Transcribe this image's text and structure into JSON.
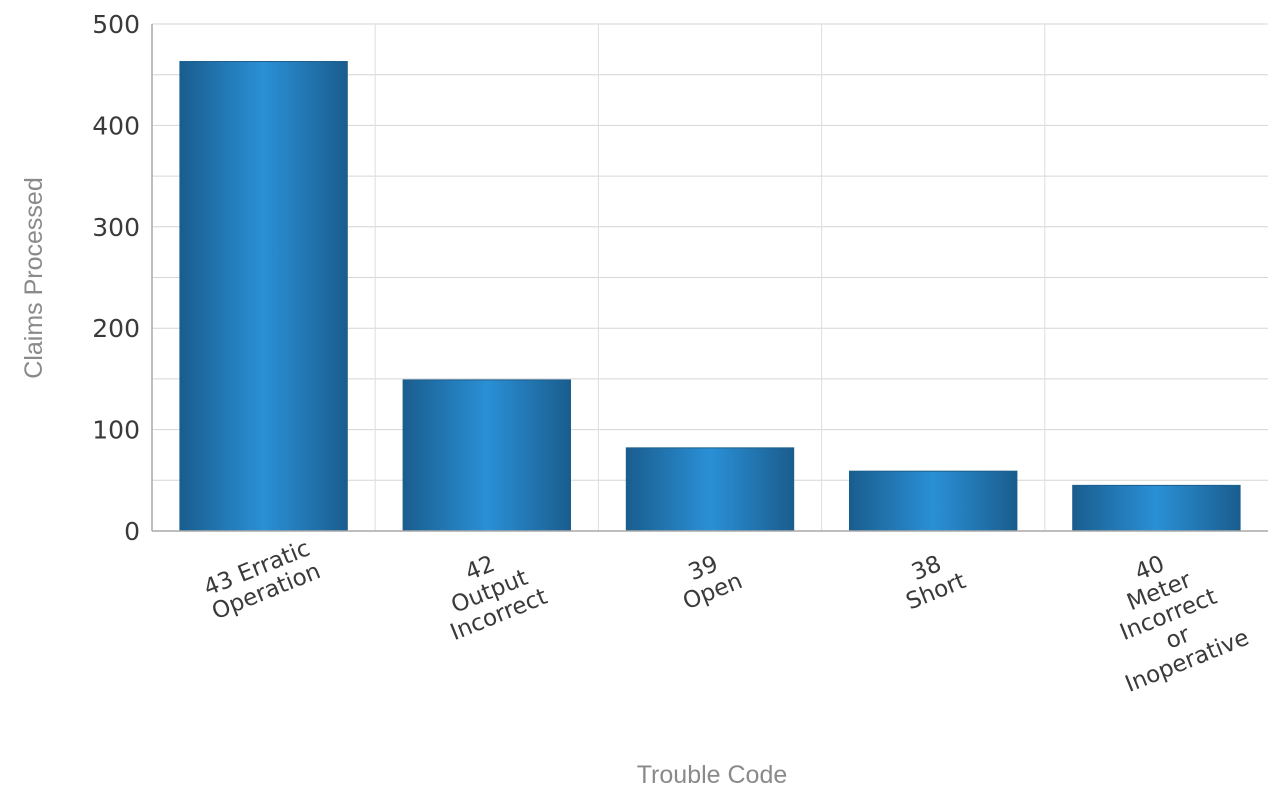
{
  "chart_data": {
    "type": "bar",
    "title": "",
    "xlabel": "Trouble Code",
    "ylabel": "Claims Processed",
    "ylim": [
      0,
      500
    ],
    "yticks": [
      0,
      100,
      200,
      300,
      400,
      500
    ],
    "grid": true,
    "legend": "none",
    "bar_color": "#2585c8",
    "bar_edge_color": "#1d5e8c",
    "categories": [
      [
        "43 Erratic",
        "Operation"
      ],
      [
        "42",
        "Output",
        "Incorrect"
      ],
      [
        "39",
        "Open"
      ],
      [
        "38",
        "Short"
      ],
      [
        "40",
        "Meter",
        "Incorrect",
        "or",
        "Inoperative"
      ]
    ],
    "values": [
      463,
      149,
      82,
      59,
      45
    ]
  }
}
